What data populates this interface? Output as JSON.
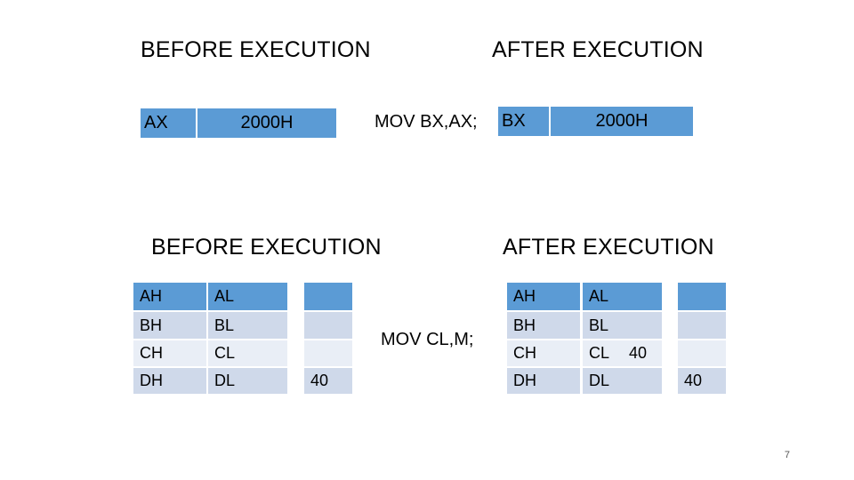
{
  "section1": {
    "before_title": "BEFORE EXECUTION",
    "after_title": "AFTER EXECUTION",
    "instruction": "MOV BX,AX;",
    "before_reg": {
      "name": "AX",
      "value": "2000H"
    },
    "after_reg": {
      "name": "BX",
      "value": "2000H"
    }
  },
  "section2": {
    "before_title": "BEFORE EXECUTION",
    "after_title": "AFTER EXECUTION",
    "instruction": "MOV CL,M;",
    "before": {
      "rows": [
        {
          "high": "AH",
          "low": "AL",
          "mem": ""
        },
        {
          "high": "BH",
          "low": "BL",
          "mem": ""
        },
        {
          "high": "CH",
          "low": "CL",
          "mem": ""
        },
        {
          "high": "DH",
          "low": "DL",
          "mem": "40"
        }
      ]
    },
    "after": {
      "rows": [
        {
          "high": "AH",
          "low": "AL",
          "low_value": "",
          "mem": ""
        },
        {
          "high": "BH",
          "low": "BL",
          "low_value": "",
          "mem": ""
        },
        {
          "high": "CH",
          "low": "CL",
          "low_value": "40",
          "mem": ""
        },
        {
          "high": "DH",
          "low": "DL",
          "low_value": "",
          "mem": "40"
        }
      ]
    }
  },
  "page_number": "7"
}
